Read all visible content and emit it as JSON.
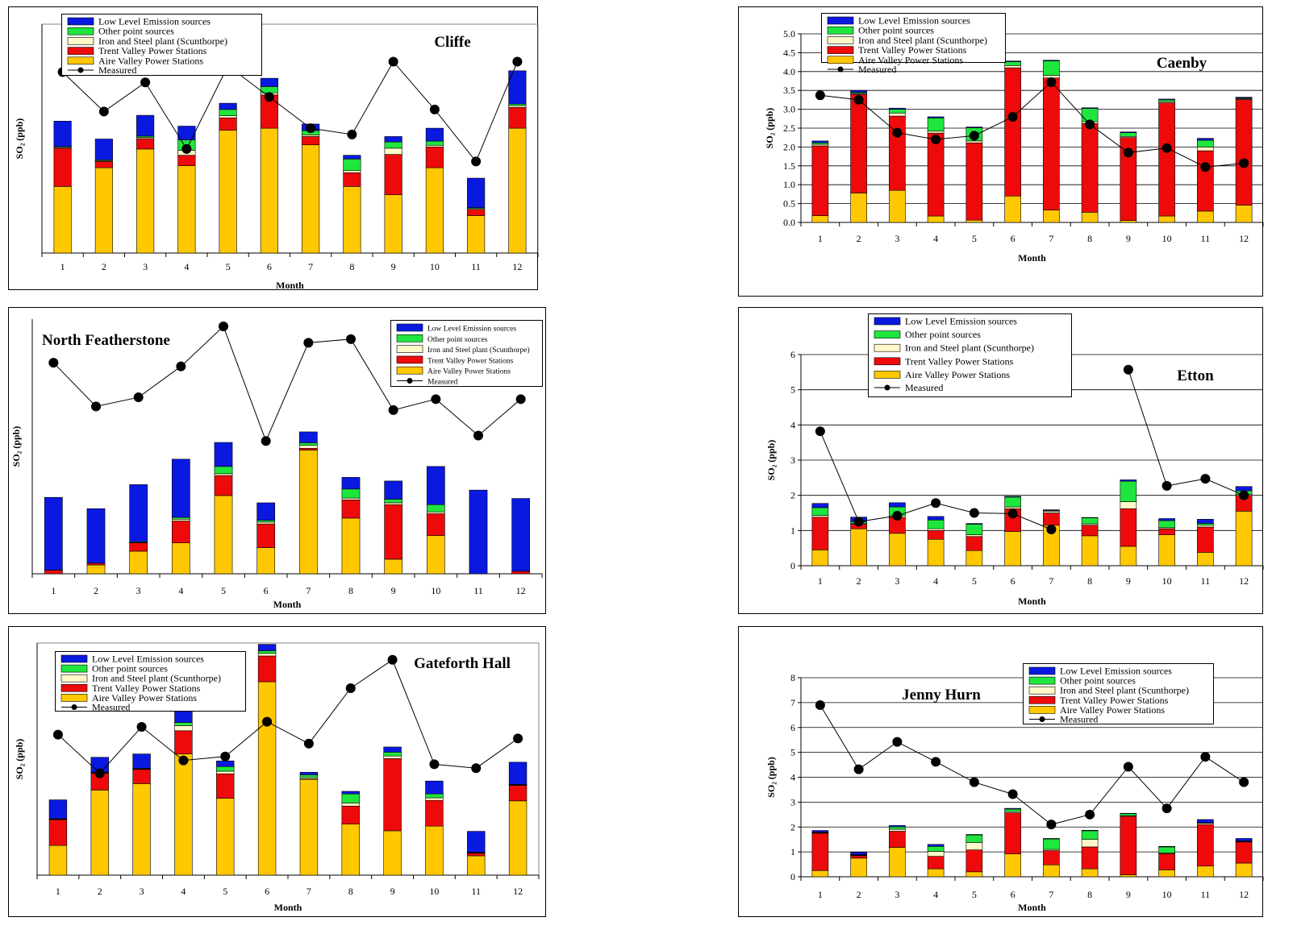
{
  "legend_labels": {
    "low": "Low Level Emission sources",
    "other": "Other point sources",
    "iron": "Iron and Steel plant (Scunthorpe)",
    "trent": "Trent Valley Power Stations",
    "aire": "Aire Valley Power Stations",
    "measured": "Measured"
  },
  "colors": {
    "low": "#0a19e0",
    "other": "#1ee63c",
    "iron": "#fff8c8",
    "trent": "#ee0a0a",
    "aire": "#ffc800",
    "measured": "#000000"
  },
  "ylabel": "SO₂ (ppb)",
  "chart_data": [
    {
      "type": "bar",
      "title": "Cliffe",
      "xlabel": "Month",
      "categories": [
        "1",
        "2",
        "3",
        "4",
        "5",
        "6",
        "7",
        "8",
        "9",
        "10",
        "11",
        "12"
      ],
      "ylim": [
        0,
        5.5
      ],
      "series": [
        {
          "name": "Aire Valley Power Stations",
          "values": [
            1.6,
            2.05,
            2.5,
            2.1,
            2.95,
            3.0,
            2.6,
            1.6,
            1.4,
            2.05,
            0.9,
            3.0
          ]
        },
        {
          "name": "Trent Valley Power Stations",
          "values": [
            0.92,
            0.15,
            0.25,
            0.25,
            0.3,
            0.8,
            0.2,
            0.33,
            0.97,
            0.5,
            0.15,
            0.5
          ]
        },
        {
          "name": "Iron and Steel plant (Scunthorpe)",
          "values": [
            0.02,
            0.02,
            0.03,
            0.12,
            0.05,
            0.05,
            0.04,
            0.05,
            0.15,
            0.04,
            0.02,
            0.04
          ]
        },
        {
          "name": "Other point sources",
          "values": [
            0.02,
            0.02,
            0.03,
            0.25,
            0.15,
            0.15,
            0.1,
            0.28,
            0.15,
            0.1,
            0.02,
            0.04
          ]
        },
        {
          "name": "Low Level Emission sources",
          "values": [
            0.61,
            0.5,
            0.5,
            0.33,
            0.15,
            0.2,
            0.16,
            0.09,
            0.13,
            0.31,
            0.71,
            0.8
          ]
        }
      ],
      "measured": [
        4.35,
        3.4,
        4.1,
        2.5,
        4.5,
        3.75,
        3.0,
        2.85,
        4.6,
        3.45,
        2.2,
        4.6
      ]
    },
    {
      "type": "bar",
      "title": "Caenby",
      "xlabel": "Month",
      "categories": [
        "1",
        "2",
        "3",
        "4",
        "5",
        "6",
        "7",
        "8",
        "9",
        "10",
        "11",
        "12"
      ],
      "ylim": [
        0,
        5
      ],
      "yticks": [
        "0.0",
        "0.5",
        "1.0",
        "1.5",
        "2.0",
        "2.5",
        "3.0",
        "3.5",
        "4.0",
        "4.5",
        "5.0"
      ],
      "series": [
        {
          "name": "Aire Valley Power Stations",
          "values": [
            0.18,
            0.78,
            0.85,
            0.17,
            0.06,
            0.7,
            0.33,
            0.27,
            0.05,
            0.17,
            0.3,
            0.46
          ]
        },
        {
          "name": "Trent Valley Power Stations",
          "values": [
            1.85,
            2.62,
            1.97,
            2.2,
            2.05,
            3.4,
            3.5,
            2.35,
            2.2,
            3.0,
            1.6,
            2.8
          ]
        },
        {
          "name": "Iron and Steel plant (Scunthorpe)",
          "values": [
            0.04,
            0.02,
            0.08,
            0.05,
            0.05,
            0.06,
            0.07,
            0.05,
            0.03,
            0.03,
            0.1,
            0.02
          ]
        },
        {
          "name": "Other point sources",
          "values": [
            0.04,
            0.03,
            0.1,
            0.35,
            0.35,
            0.1,
            0.38,
            0.35,
            0.1,
            0.05,
            0.18,
            0.02
          ]
        },
        {
          "name": "Low Level Emission sources",
          "values": [
            0.05,
            0.05,
            0.03,
            0.03,
            0.02,
            0.02,
            0.02,
            0.02,
            0.02,
            0.02,
            0.05,
            0.02
          ]
        }
      ],
      "measured": [
        3.37,
        3.25,
        2.38,
        2.2,
        2.3,
        2.8,
        3.72,
        2.6,
        1.85,
        1.97,
        1.47,
        1.57
      ]
    },
    {
      "type": "bar",
      "title": "North Featherstone",
      "xlabel": "Month",
      "categories": [
        "1",
        "2",
        "3",
        "4",
        "5",
        "6",
        "7",
        "8",
        "9",
        "10",
        "11",
        "12"
      ],
      "ylim": [
        0,
        7
      ],
      "series": [
        {
          "name": "Aire Valley Power Stations",
          "values": [
            0.0,
            0.24,
            0.62,
            0.85,
            2.15,
            0.72,
            3.4,
            1.53,
            0.4,
            1.05,
            0.0,
            0.0
          ]
        },
        {
          "name": "Trent Valley Power Stations",
          "values": [
            0.1,
            0.05,
            0.23,
            0.6,
            0.55,
            0.65,
            0.05,
            0.5,
            1.5,
            0.6,
            0.0,
            0.07
          ]
        },
        {
          "name": "Iron and Steel plant (Scunthorpe)",
          "values": [
            0.0,
            0.0,
            0.01,
            0.05,
            0.05,
            0.05,
            0.08,
            0.05,
            0.05,
            0.05,
            0.0,
            0.0
          ]
        },
        {
          "name": "Other point sources",
          "values": [
            0.0,
            0.0,
            0.02,
            0.05,
            0.2,
            0.05,
            0.07,
            0.25,
            0.1,
            0.2,
            0.0,
            0.0
          ]
        },
        {
          "name": "Low Level Emission sources",
          "values": [
            2.0,
            1.5,
            1.57,
            1.6,
            0.66,
            0.48,
            0.3,
            0.32,
            0.5,
            1.05,
            2.3,
            2.0
          ]
        }
      ],
      "measured": [
        5.8,
        4.6,
        4.85,
        5.7,
        6.8,
        3.65,
        6.35,
        6.45,
        4.5,
        4.8,
        3.8,
        4.8
      ]
    },
    {
      "type": "bar",
      "title": "Etton",
      "xlabel": "Month",
      "categories": [
        "1",
        "2",
        "3",
        "4",
        "5",
        "6",
        "7",
        "8",
        "9",
        "10",
        "11",
        "12"
      ],
      "ylim": [
        0,
        6
      ],
      "yticks": [
        "0",
        "1",
        "2",
        "3",
        "4",
        "5",
        "6"
      ],
      "series": [
        {
          "name": "Aire Valley Power Stations",
          "values": [
            0.45,
            1.05,
            0.92,
            0.75,
            0.43,
            0.97,
            1.15,
            0.85,
            0.55,
            0.88,
            0.38,
            1.55
          ]
        },
        {
          "name": "Trent Valley Power Stations",
          "values": [
            0.93,
            0.13,
            0.45,
            0.25,
            0.4,
            0.65,
            0.35,
            0.3,
            1.07,
            0.17,
            0.72,
            0.45
          ]
        },
        {
          "name": "Iron and Steel plant (Scunthorpe)",
          "values": [
            0.05,
            0.02,
            0.05,
            0.05,
            0.05,
            0.05,
            0.05,
            0.04,
            0.2,
            0.03,
            0.05,
            0.03
          ]
        },
        {
          "name": "Other point sources",
          "values": [
            0.22,
            0.05,
            0.25,
            0.25,
            0.3,
            0.28,
            0.02,
            0.17,
            0.58,
            0.2,
            0.05,
            0.1
          ]
        },
        {
          "name": "Low Level Emission sources",
          "values": [
            0.12,
            0.13,
            0.12,
            0.1,
            0.02,
            0.02,
            0.02,
            0.01,
            0.04,
            0.06,
            0.12,
            0.12
          ]
        }
      ],
      "measured": [
        3.82,
        1.25,
        1.42,
        1.78,
        1.5,
        1.48,
        1.03,
        null,
        5.57,
        2.27,
        2.47,
        2.0
      ]
    },
    {
      "type": "bar",
      "title": "Gateforth Hall",
      "xlabel": "Month",
      "categories": [
        "1",
        "2",
        "3",
        "4",
        "5",
        "6",
        "7",
        "8",
        "9",
        "10",
        "11",
        "12"
      ],
      "ylim": [
        0,
        9
      ],
      "series": [
        {
          "name": "Aire Valley Power Stations",
          "values": [
            1.15,
            3.3,
            3.55,
            4.7,
            2.98,
            7.5,
            3.72,
            1.98,
            1.72,
            1.9,
            0.75,
            2.88
          ]
        },
        {
          "name": "Trent Valley Power Stations",
          "values": [
            1.0,
            0.65,
            0.55,
            0.9,
            0.95,
            1.0,
            0.02,
            0.7,
            2.8,
            1.0,
            0.1,
            0.6
          ]
        },
        {
          "name": "Iron and Steel plant (Scunthorpe)",
          "values": [
            0.02,
            0.02,
            0.02,
            0.2,
            0.1,
            0.1,
            0.05,
            0.12,
            0.1,
            0.1,
            0.02,
            0.02
          ]
        },
        {
          "name": "Other point sources",
          "values": [
            0.02,
            0.02,
            0.02,
            0.12,
            0.18,
            0.1,
            0.1,
            0.35,
            0.15,
            0.15,
            0.02,
            0.02
          ]
        },
        {
          "name": "Low Level Emission sources",
          "values": [
            0.73,
            0.58,
            0.56,
            0.5,
            0.22,
            0.25,
            0.1,
            0.1,
            0.2,
            0.5,
            0.81,
            0.86
          ]
        }
      ],
      "measured": [
        5.45,
        3.95,
        5.75,
        4.45,
        4.6,
        5.95,
        5.1,
        7.25,
        8.35,
        4.3,
        4.15,
        5.3
      ]
    },
    {
      "type": "bar",
      "title": "Jenny Hurn",
      "xlabel": "Month",
      "categories": [
        "1",
        "2",
        "3",
        "4",
        "5",
        "6",
        "7",
        "8",
        "9",
        "10",
        "11",
        "12"
      ],
      "ylim": [
        0,
        8
      ],
      "yticks": [
        "0",
        "1",
        "2",
        "3",
        "4",
        "5",
        "6",
        "7",
        "8"
      ],
      "series": [
        {
          "name": "Aire Valley Power Stations",
          "values": [
            0.25,
            0.75,
            1.18,
            0.32,
            0.2,
            0.92,
            0.48,
            0.32,
            0.08,
            0.28,
            0.43,
            0.55
          ]
        },
        {
          "name": "Trent Valley Power Stations",
          "values": [
            1.5,
            0.1,
            0.65,
            0.5,
            0.88,
            1.65,
            0.57,
            0.88,
            2.35,
            0.65,
            1.67,
            0.85
          ]
        },
        {
          "name": "Iron and Steel plant (Scunthorpe)",
          "values": [
            0.02,
            0.02,
            0.08,
            0.2,
            0.3,
            0.05,
            0.05,
            0.3,
            0.03,
            0.02,
            0.05,
            0.02
          ]
        },
        {
          "name": "Other point sources",
          "values": [
            0.02,
            0.02,
            0.1,
            0.2,
            0.3,
            0.1,
            0.42,
            0.35,
            0.08,
            0.25,
            0.02,
            0.02
          ]
        },
        {
          "name": "Low Level Emission sources",
          "values": [
            0.07,
            0.1,
            0.05,
            0.08,
            0.02,
            0.03,
            0.02,
            0.02,
            0.01,
            0.02,
            0.13,
            0.1
          ]
        }
      ],
      "measured": [
        6.9,
        4.32,
        5.42,
        4.62,
        3.8,
        3.32,
        2.1,
        2.5,
        4.42,
        2.75,
        4.82,
        3.8
      ]
    }
  ]
}
